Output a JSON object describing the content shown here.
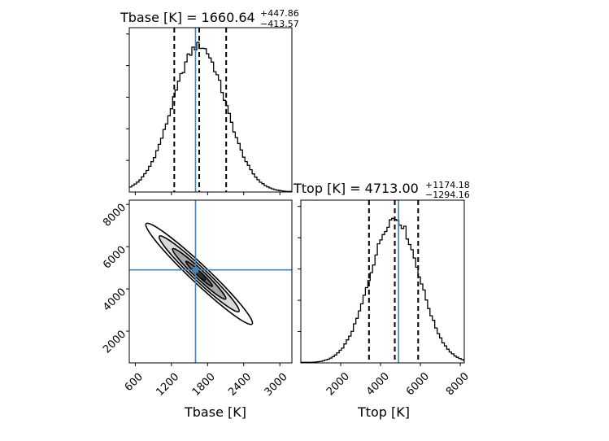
{
  "chart_data": [
    {
      "type": "histogram",
      "panel": "top-left",
      "title": "Tbase [K] = 1660.64",
      "title_parts": {
        "label": "Tbase [K] = 1660.64",
        "plus": "+447.86",
        "minus": "−413.57"
      },
      "xlim": [
        500,
        3200
      ],
      "xticks": [
        600,
        1200,
        1800,
        2400,
        3000
      ],
      "show_xtick_labels": false,
      "show_ytick_labels": false,
      "yticks_count": 5,
      "quantiles": [
        1247,
        1661,
        2109
      ],
      "truth": 1600,
      "median": 1661,
      "sigma": 440,
      "bin_width": 40,
      "color_truth": "#4682b4",
      "color_hist": "#000000"
    },
    {
      "type": "contour",
      "panel": "bottom-left",
      "xlabel": "Tbase [K]",
      "ylabel": "",
      "xlim": [
        500,
        3200
      ],
      "ylim": [
        500,
        8200
      ],
      "xticks": [
        600,
        1200,
        1800,
        2400,
        3000
      ],
      "yticks": [
        2000,
        4000,
        6000,
        8000
      ],
      "xtick_labels": [
        "600",
        "1200",
        "1800",
        "2400",
        "3000"
      ],
      "ytick_labels": [
        "2000",
        "4000",
        "6000",
        "8000"
      ],
      "center": {
        "x": 1660,
        "y": 4713
      },
      "correlation": -0.97,
      "contour_levels_sigma": [
        0.5,
        1.0,
        1.5,
        2.0
      ],
      "truth": {
        "x": 1600,
        "y": 4900
      },
      "color_truth": "#4682b4"
    },
    {
      "type": "histogram",
      "panel": "bottom-right",
      "title": "Ttop [K] = 4713.00",
      "title_parts": {
        "label": "Ttop [K] = 4713.00",
        "plus": "+1174.18",
        "minus": "−1294.16"
      },
      "xlabel": "Ttop [K]",
      "xlim": [
        0,
        8200
      ],
      "xticks": [
        2000,
        4000,
        6000,
        8000
      ],
      "xtick_labels": [
        "2000",
        "4000",
        "6000",
        "8000"
      ],
      "show_ytick_labels": false,
      "yticks_count": 5,
      "quantiles": [
        3419,
        4713,
        5887
      ],
      "truth": 4900,
      "median": 4713,
      "sigma": 1230,
      "bin_width": 120,
      "color_truth": "#4682b4",
      "color_hist": "#000000"
    }
  ]
}
